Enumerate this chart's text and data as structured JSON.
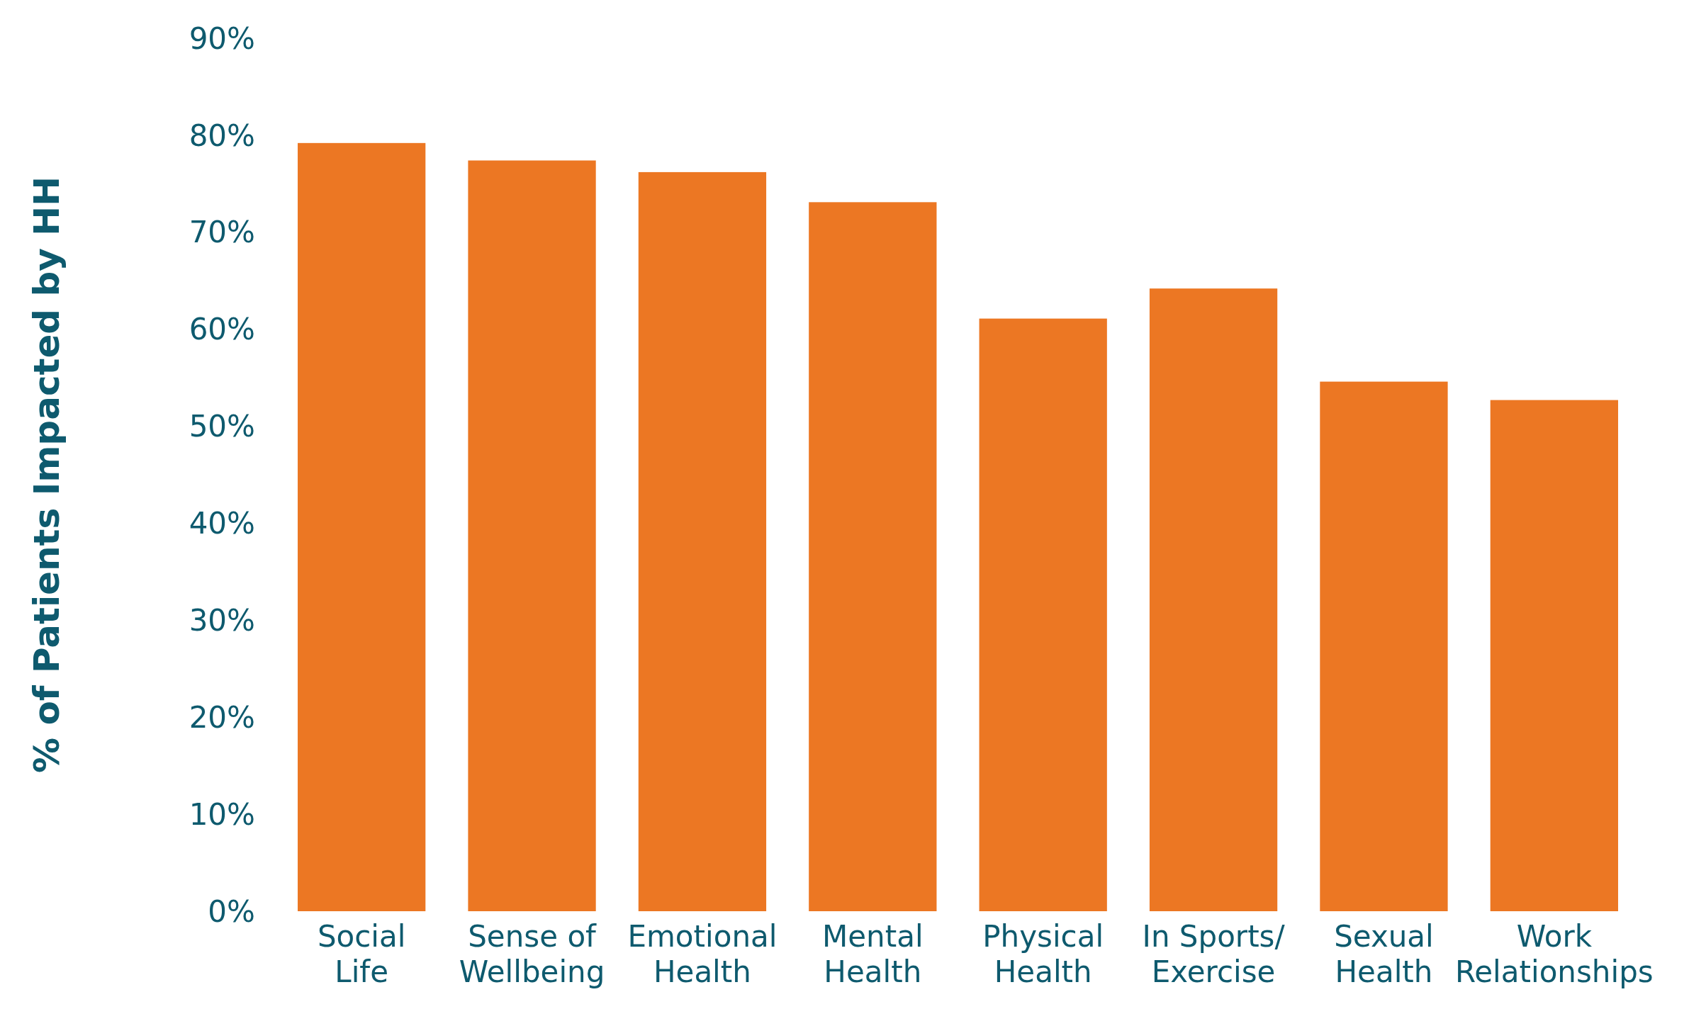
{
  "chart_data": {
    "type": "bar",
    "ylabel": "% of Patients Impacted by HH",
    "categories": [
      "Social\nLife",
      "Sense of\nWellbeing",
      "Emotional\nHealth",
      "Mental\nHealth",
      "Physical\nHealth",
      "In Sports/\nExercise",
      "Sexual\nHealth",
      "Work\nRelationships"
    ],
    "values": [
      79.2,
      77.4,
      76.2,
      73.1,
      61.1,
      64.2,
      54.6,
      52.7
    ],
    "color": "#ec7723",
    "ylim": [
      0,
      90
    ],
    "yticks": [
      {
        "value": 0,
        "label": "0%"
      },
      {
        "value": 10,
        "label": "10%"
      },
      {
        "value": 20,
        "label": "20%"
      },
      {
        "value": 30,
        "label": "30%"
      },
      {
        "value": 40,
        "label": "40%"
      },
      {
        "value": 50,
        "label": "50%"
      },
      {
        "value": 60,
        "label": "60%"
      },
      {
        "value": 70,
        "label": "70%"
      },
      {
        "value": 80,
        "label": "80%"
      },
      {
        "value": 90,
        "label": "90%"
      }
    ],
    "grid": false
  }
}
